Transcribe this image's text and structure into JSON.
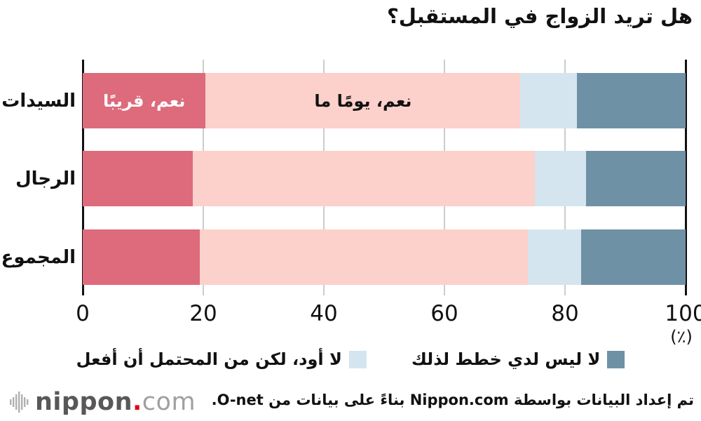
{
  "title": "هل تريد الزواج في المستقبل؟",
  "chart_data": {
    "type": "bar",
    "orientation": "horizontal",
    "stacked": true,
    "title": "هل تريد الزواج في المستقبل؟",
    "categories": [
      "السيدات",
      "الرجال",
      "المجموع"
    ],
    "series": [
      {
        "name": "نعم، قريبًا",
        "color": "#dd6b7b",
        "label_color": "#ffffff",
        "label_in_bar": true,
        "values": [
          20.4,
          18.2,
          19.4
        ]
      },
      {
        "name": "نعم، يومًا ما",
        "color": "#fcd0cb",
        "label_color": "#111111",
        "label_in_bar": true,
        "values": [
          52.2,
          56.8,
          54.4
        ]
      },
      {
        "name": "لا أود، لكن من المحتمل أن أفعل",
        "color": "#d4e5f0",
        "label_in_bar": false,
        "values": [
          9.4,
          8.5,
          8.9
        ]
      },
      {
        "name": "لا ليس لدي خطط لذلك",
        "color": "#6f91a6",
        "label_in_bar": false,
        "values": [
          18.0,
          16.5,
          17.3
        ]
      }
    ],
    "xlim": [
      0,
      100
    ],
    "x_ticks": [
      0,
      20,
      40,
      60,
      80,
      100
    ],
    "x_unit": "(٪)",
    "grid": true,
    "legend_position": "bottom-center",
    "legend_series_indexes": [
      3,
      2
    ]
  },
  "colors": {
    "grid": "#cccccc",
    "axis_edge": "#111111",
    "text": "#111111"
  },
  "footer": {
    "source": "تم إعداد البيانات بواسطة Nippon.com بناءً على بيانات من O-net.",
    "logo": {
      "name": "nippon",
      "dot": ".",
      "tld": "com"
    }
  }
}
